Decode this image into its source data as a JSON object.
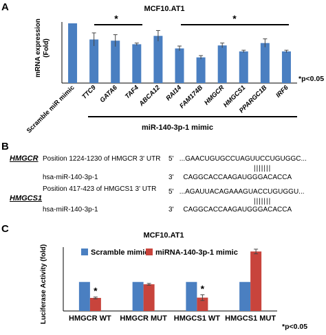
{
  "panel_a": {
    "label": "A",
    "title": "MCF10.AT1",
    "ylabel_line1": "mRNA expression",
    "ylabel_line2": "(Fold)",
    "pvalue": "*p<0.05",
    "group_label": "miR-140-3p-1 mimic",
    "star1": "*",
    "star2": "*"
  },
  "panel_b": {
    "label": "B",
    "gene1": "HMGCR",
    "gene1_position": "Position 1224-1230 of HMGCR 3' UTR",
    "gene1_mir": "hsa-miR-140-3p-1",
    "gene1_utr": "5'   ...GAACUGUGCCUAGUUCCUGUGGC...",
    "gene1_pairs": "|||||||",
    "gene1_mirseq": "3'     CAGGCACCAAGAUGGGACACCA",
    "gene2": "HMGCS1",
    "gene2_position": "Position 417-423 of HMGCS1 3' UTR",
    "gene2_mir": "hsa-miR-140-3p-1",
    "gene2_utr": "5'   ...AGAUUACAGAAAGUACCUGUGGU...",
    "gene2_pairs": "|||||||",
    "gene2_mirseq": "3'     CAGGCACCAAGAUGGGACACCA"
  },
  "panel_c": {
    "label": "C",
    "title": "MCF10.AT1",
    "ylabel": "Luciferase Activity (fold)",
    "pvalue": "*p<0.05"
  },
  "colors": {
    "blue": "#4a7fc1",
    "red": "#c8443c"
  },
  "chart_data": [
    {
      "type": "bar",
      "title": "MCF10.AT1",
      "ylabel": "mRNA expression (Fold)",
      "ylim": [
        0,
        1.0
      ],
      "categories": [
        "Scramble miR mimic",
        "TTC9",
        "GATA6",
        "TAF4",
        "ABCA12",
        "RAI14",
        "FAM174B",
        "HMGCR",
        "HMGCS1",
        "PPARGC1B",
        "IRF6"
      ],
      "values": [
        1.0,
        0.73,
        0.71,
        0.65,
        0.79,
        0.58,
        0.43,
        0.63,
        0.53,
        0.67,
        0.53
      ],
      "errors": [
        0,
        0.11,
        0.1,
        0.02,
        0.09,
        0.04,
        0.03,
        0.04,
        0.02,
        0.07,
        0.02
      ],
      "grid": false
    },
    {
      "type": "bar",
      "title": "MCF10.AT1",
      "ylabel": "Luciferase Activity (fold)",
      "ylim": [
        0,
        2.2
      ],
      "categories": [
        "HMGCR WT",
        "HMGCR MUT",
        "HMGCS1 WT",
        "HMGCS1 MUT"
      ],
      "series": [
        {
          "name": "Scramble mimic",
          "values": [
            1.0,
            1.0,
            1.0,
            1.0
          ],
          "errors": [
            0,
            0,
            0,
            0
          ]
        },
        {
          "name": "miRNA-140-3p-1 mimic",
          "values": [
            0.45,
            0.92,
            0.46,
            2.05
          ],
          "errors": [
            0.03,
            0.03,
            0.1,
            0.08
          ]
        }
      ],
      "significant": [
        "HMGCR WT",
        "HMGCS1 WT"
      ],
      "legend": "top",
      "grid": false
    }
  ]
}
